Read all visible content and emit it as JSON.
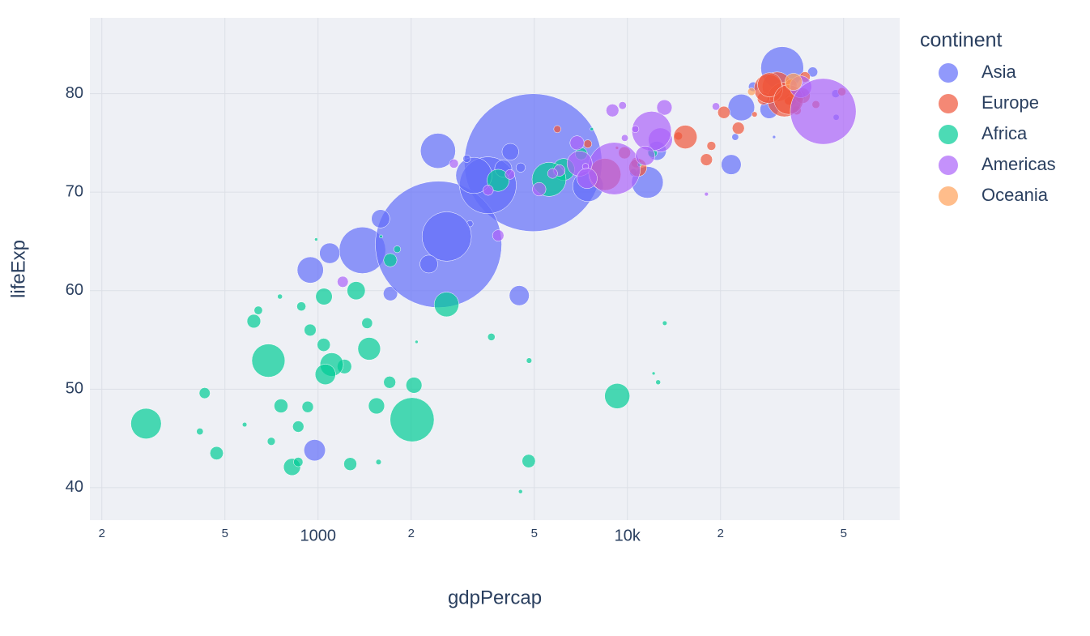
{
  "chart_data": {
    "type": "scatter",
    "x_label": "gdpPercap",
    "y_label": "lifeExp",
    "legend_title": "continent",
    "log_x": true,
    "grid": true,
    "opacity": 0.7,
    "xlim": [
      183,
      75900
    ],
    "ylim": [
      36.7,
      87.7
    ],
    "xticks": [
      {
        "value": 200,
        "label": "2"
      },
      {
        "value": 500,
        "label": "5"
      },
      1000,
      {
        "value": 2000,
        "label": "2"
      },
      {
        "value": 5000,
        "label": "5"
      },
      {
        "value": 10000,
        "label": "10k"
      },
      {
        "value": 20000,
        "label": "2"
      },
      {
        "value": 50000,
        "label": "5"
      }
    ],
    "yticks": [
      40,
      50,
      60,
      70,
      80
    ],
    "series": [
      {
        "name": "Asia",
        "color": "#636efa",
        "x": [
          975,
          29796,
          1391,
          1714,
          4959,
          39725,
          2452,
          3541,
          11606,
          4471,
          25523,
          31656,
          4519,
          1593,
          23348,
          47307,
          10461,
          12452,
          3096,
          944,
          1091,
          22316,
          2606,
          3190,
          21655,
          47143,
          3970,
          4185,
          28718,
          7458,
          2442,
          3025,
          2281
        ],
        "values": [
          43.8,
          75.6,
          64.1,
          59.7,
          73.0,
          82.2,
          64.7,
          70.7,
          71.0,
          59.5,
          80.7,
          82.6,
          72.5,
          67.3,
          78.6,
          77.6,
          72.0,
          74.2,
          66.8,
          62.1,
          63.8,
          75.6,
          65.5,
          71.7,
          72.8,
          80.0,
          72.4,
          74.1,
          78.4,
          70.6,
          74.2,
          73.4,
          62.7
        ],
        "sizes": [
          31.9,
          0.71,
          150.4,
          14.1,
          1318.7,
          6.98,
          1110.4,
          223.5,
          69.5,
          27.5,
          6.43,
          127.5,
          6.05,
          23.3,
          49.0,
          2.51,
          3.92,
          24.8,
          2.87,
          47.8,
          28.9,
          3.2,
          169.3,
          91.1,
          27.6,
          4.55,
          20.4,
          19.3,
          23.2,
          65.1,
          85.3,
          4.02,
          22.2
        ]
      },
      {
        "name": "Europe",
        "color": "#EF553B",
        "x": [
          5937,
          36126,
          33693,
          7446,
          10681,
          14619,
          22833,
          35278,
          33207,
          30470,
          32170,
          27538,
          18009,
          36181,
          40676,
          28570,
          9254,
          36798,
          49357,
          15390,
          20510,
          10808,
          9787,
          18678,
          25768,
          28821,
          33860,
          37506,
          8458,
          33203
        ],
        "values": [
          76.4,
          79.8,
          79.4,
          74.9,
          73.0,
          75.7,
          76.5,
          78.3,
          79.3,
          80.7,
          79.4,
          79.5,
          73.3,
          81.8,
          78.9,
          80.5,
          74.5,
          79.8,
          80.2,
          75.6,
          78.1,
          72.5,
          74.0,
          74.7,
          77.9,
          80.9,
          80.9,
          81.7,
          71.8,
          79.4
        ],
        "sizes": [
          3.6,
          8.2,
          10.4,
          4.55,
          7.32,
          4.49,
          10.2,
          5.47,
          5.24,
          61.1,
          82.4,
          10.7,
          9.96,
          0.3,
          4.11,
          58.1,
          0.68,
          16.6,
          4.63,
          38.5,
          10.6,
          22.3,
          10.2,
          5.45,
          2.01,
          40.4,
          9.03,
          7.55,
          71.2,
          60.8
        ]
      },
      {
        "name": "Africa",
        "color": "#00cc96",
        "x": [
          6223,
          4797,
          1441,
          12570,
          1217,
          430,
          2042,
          706,
          1704,
          986,
          278,
          3633,
          1545,
          2082,
          5581,
          12154,
          641,
          691,
          13206,
          753,
          1328,
          943,
          579,
          1463,
          1569,
          415,
          12058,
          1045,
          759,
          1043,
          1803,
          10957,
          3820,
          824,
          4811,
          620,
          2014,
          7670,
          863,
          1598,
          1712,
          863,
          926,
          9270,
          2602,
          4513,
          1107,
          883,
          7093,
          1056,
          1271,
          470
        ],
        "values": [
          72.3,
          42.7,
          56.7,
          50.7,
          52.3,
          49.6,
          50.4,
          44.7,
          50.7,
          65.2,
          46.5,
          55.3,
          48.3,
          54.8,
          71.3,
          51.6,
          58.0,
          52.9,
          56.7,
          59.4,
          60.0,
          56.0,
          46.4,
          54.1,
          42.6,
          45.7,
          74.0,
          59.4,
          48.3,
          54.5,
          64.2,
          72.8,
          71.2,
          42.1,
          52.9,
          56.9,
          46.9,
          76.4,
          46.2,
          65.5,
          63.1,
          42.6,
          48.2,
          49.3,
          58.6,
          39.6,
          52.5,
          58.4,
          73.9,
          51.5,
          42.4,
          43.5
        ],
        "sizes": [
          33.3,
          12.4,
          8.08,
          1.64,
          14.3,
          8.39,
          17.7,
          4.37,
          10.2,
          0.71,
          64.6,
          3.8,
          18.0,
          0.5,
          80.3,
          0.55,
          4.91,
          76.5,
          1.45,
          1.69,
          22.9,
          9.95,
          1.47,
          35.6,
          2.01,
          3.19,
          6.04,
          19.2,
          13.3,
          12.0,
          3.27,
          1.25,
          33.8,
          20.0,
          2.06,
          12.9,
          135.0,
          0.8,
          8.86,
          0.2,
          12.3,
          6.14,
          9.12,
          44.0,
          42.3,
          1.13,
          38.1,
          5.7,
          10.3,
          29.2,
          11.7,
          12.3
        ]
      },
      {
        "name": "Americas",
        "color": "#ab63fa",
        "x": [
          12779,
          3822,
          9066,
          36319,
          13172,
          7007,
          9645,
          8948,
          6025,
          6873,
          5728,
          5186,
          1202,
          3548,
          7321,
          11978,
          2749,
          9809,
          4173,
          7409,
          19329,
          18009,
          42952,
          10611,
          11416
        ],
        "values": [
          75.3,
          65.6,
          72.4,
          80.7,
          78.6,
          72.9,
          78.8,
          78.3,
          72.2,
          75.0,
          71.9,
          70.3,
          60.9,
          70.2,
          72.6,
          76.2,
          72.9,
          75.5,
          71.8,
          71.4,
          78.7,
          69.8,
          78.2,
          76.4,
          73.7
        ],
        "sizes": [
          40.3,
          9.12,
          190.0,
          33.4,
          16.3,
          44.2,
          4.13,
          11.4,
          9.32,
          13.8,
          6.94,
          12.6,
          8.5,
          7.48,
          2.78,
          108.7,
          5.68,
          3.24,
          6.67,
          28.7,
          3.94,
          1.06,
          301.1,
          3.45,
          26.1
        ]
      },
      {
        "name": "Oceania",
        "color": "#FFA15A",
        "x": [
          34435,
          25185
        ],
        "values": [
          81.2,
          80.2
        ],
        "sizes": [
          20.4,
          4.12
        ]
      }
    ]
  }
}
